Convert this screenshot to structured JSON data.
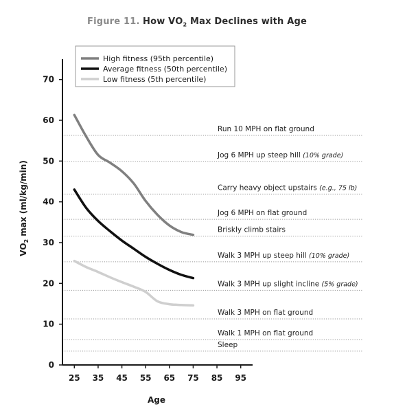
{
  "title": {
    "prefix": "Figure 11.",
    "main_before_sub": "How VO",
    "main_sub": "2",
    "main_after_sub": " Max Declines with Age"
  },
  "chart_data": {
    "type": "line",
    "xlabel": "Age",
    "ylabel_before_sub": "VO",
    "ylabel_sub": "2",
    "ylabel_after_sub": " max (ml/kg/min)",
    "xlim": [
      20,
      100
    ],
    "ylim": [
      0,
      75
    ],
    "x_ticks": [
      25,
      35,
      45,
      55,
      65,
      75,
      85,
      95
    ],
    "y_ticks": [
      0,
      10,
      20,
      30,
      40,
      50,
      60,
      70
    ],
    "legend_position": "top-left",
    "grid": false,
    "series": [
      {
        "name": "High fitness (95th percentile)",
        "color": "#808080",
        "x": [
          25,
          30,
          35,
          40,
          45,
          50,
          55,
          60,
          65,
          70,
          75
        ],
        "y": [
          61.3,
          56.0,
          51.5,
          49.6,
          47.5,
          44.5,
          40.2,
          36.8,
          34.2,
          32.6,
          31.9
        ]
      },
      {
        "name": "Average fitness (50th percentile)",
        "color": "#111111",
        "x": [
          25,
          30,
          35,
          40,
          45,
          50,
          55,
          60,
          65,
          70,
          75
        ],
        "y": [
          43.0,
          38.5,
          35.3,
          32.8,
          30.5,
          28.5,
          26.5,
          24.8,
          23.3,
          22.1,
          21.3
        ]
      },
      {
        "name": "Low fitness (5th percentile)",
        "color": "#cfcfcf",
        "x": [
          25,
          30,
          35,
          40,
          45,
          50,
          55,
          60,
          65,
          70,
          75
        ],
        "y": [
          25.5,
          24.0,
          22.8,
          21.5,
          20.3,
          19.2,
          17.9,
          15.6,
          14.9,
          14.7,
          14.6
        ]
      }
    ],
    "reference_lines": [
      {
        "y": 56.3,
        "label": "Run 10 MPH on flat ground",
        "note": ""
      },
      {
        "y": 49.9,
        "label": "Jog 6 MPH up steep hill ",
        "note": "(10% grade)"
      },
      {
        "y": 41.9,
        "label": "Carry heavy object upstairs ",
        "note": "(e.g., 75 lb)"
      },
      {
        "y": 35.7,
        "label": "Jog 6 MPH on flat ground",
        "note": ""
      },
      {
        "y": 31.6,
        "label": "Briskly climb stairs",
        "note": ""
      },
      {
        "y": 25.3,
        "label": "Walk 3 MPH up steep hill ",
        "note": "(10% grade)"
      },
      {
        "y": 18.3,
        "label": "Walk 3 MPH up slight incline ",
        "note": "(5% grade)"
      },
      {
        "y": 11.3,
        "label": "Walk 3 MPH on flat ground",
        "note": ""
      },
      {
        "y": 6.2,
        "label": "Walk 1 MPH on flat ground",
        "note": ""
      },
      {
        "y": 3.4,
        "label": "Sleep",
        "note": ""
      }
    ]
  }
}
